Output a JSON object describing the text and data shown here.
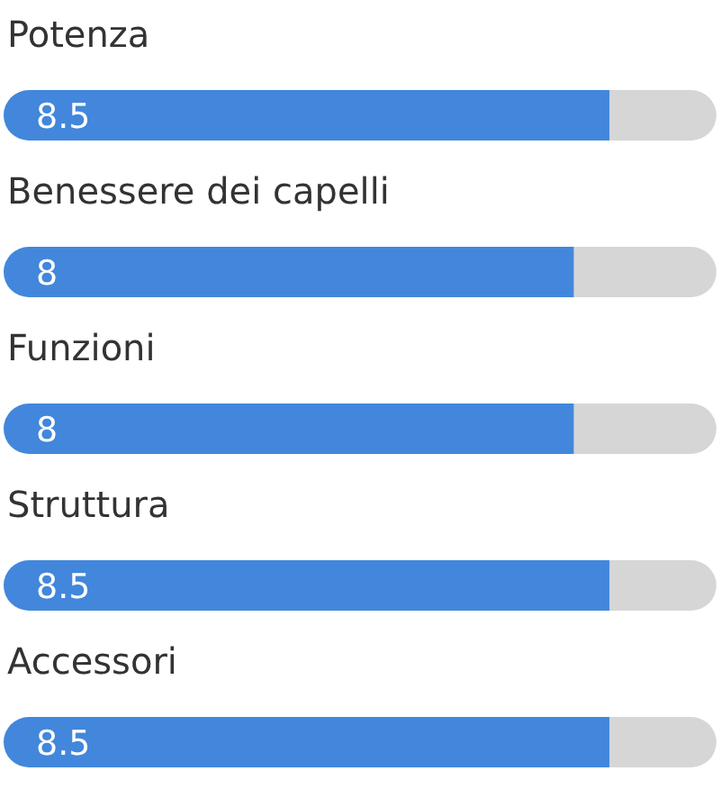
{
  "chart_data": {
    "type": "bar",
    "orientation": "horizontal",
    "categories": [
      "Potenza",
      "Benessere dei capelli",
      "Funzioni",
      "Struttura",
      "Accessori"
    ],
    "values": [
      8.5,
      8,
      8,
      8.5,
      8.5
    ],
    "color": "#4287db",
    "xlim": [
      0,
      10
    ],
    "data_labels": true
  }
}
